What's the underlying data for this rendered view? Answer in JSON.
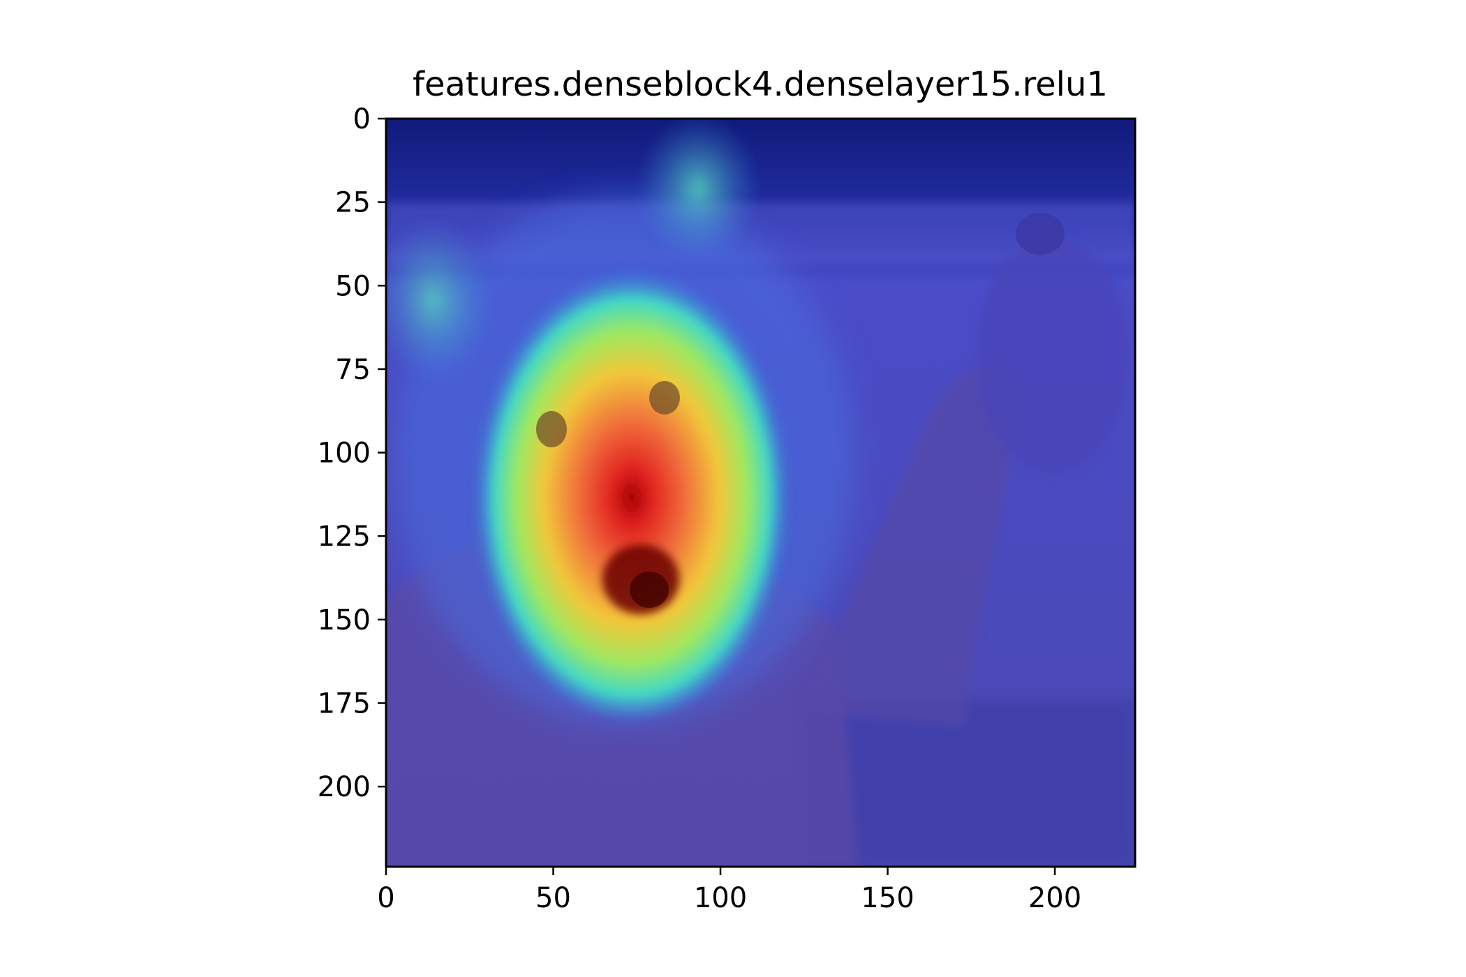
{
  "chart_data": {
    "type": "heatmap",
    "title": "features.denseblock4.denselayer15.relu1",
    "xlabel": "",
    "ylabel": "",
    "xlim": [
      0,
      224
    ],
    "ylim": [
      224,
      0
    ],
    "xticks": [
      0,
      50,
      100,
      150,
      200
    ],
    "yticks": [
      0,
      25,
      50,
      75,
      100,
      125,
      150,
      175,
      200
    ],
    "xtick_labels": [
      "0",
      "50",
      "100",
      "150",
      "200"
    ],
    "ytick_labels": [
      "0",
      "25",
      "50",
      "75",
      "100",
      "125",
      "150",
      "175",
      "200"
    ],
    "colormap": "jet",
    "overlay_description": "Grad-CAM style activation heatmap overlaid on a photo of a brown bear raising its paw",
    "activation_peak": {
      "x": 78,
      "y": 140
    },
    "grid": false,
    "colors": {
      "low": "#3b3bb8",
      "mid": "#3fe0c0",
      "high": "#f5e23a",
      "peak": "#b00000"
    }
  }
}
